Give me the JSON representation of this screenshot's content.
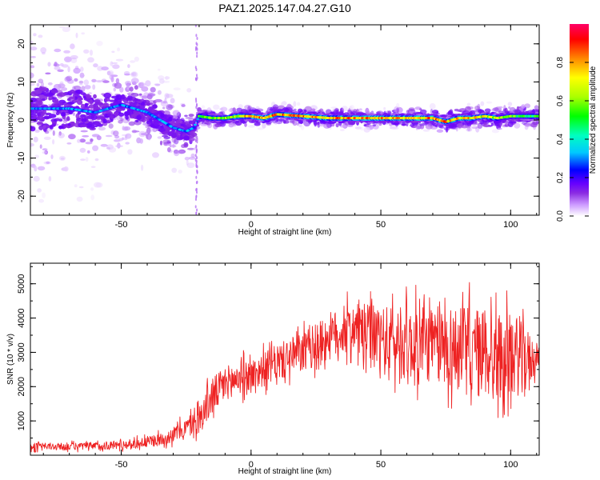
{
  "title": "PAZ1.2025.147.04.27.G10",
  "chart_data": [
    {
      "type": "heatmap",
      "xlabel": "Height of straight line (km)",
      "ylabel": "Frequency (Hz)",
      "xlim": [
        -85,
        111
      ],
      "ylim": [
        -25,
        25
      ],
      "xticks": [
        -50,
        0,
        50,
        100
      ],
      "yticks": [
        -20,
        -10,
        0,
        10,
        20
      ],
      "colorbar": {
        "label": "Normalized spectral amplitude",
        "range": [
          0,
          1
        ],
        "ticks": [
          0.0,
          0.2,
          0.4,
          0.6,
          0.8
        ],
        "tick_labels": [
          "0.0",
          "0.2",
          "0.4",
          "0.6",
          "0.8"
        ],
        "colormap": [
          "#ffffff",
          "#cc99ff",
          "#8a2be2",
          "#6600ff",
          "#0000ff",
          "#00c8ff",
          "#00ffc0",
          "#00ff00",
          "#aaff00",
          "#ffff00",
          "#ff8800",
          "#ff0000",
          "#ff0066"
        ]
      },
      "ridge": {
        "x": [
          -80,
          -70,
          -60,
          -50,
          -45,
          -40,
          -35,
          -30,
          -25,
          -22,
          -20,
          -15,
          -10,
          -5,
          0,
          5,
          10,
          20,
          30,
          40,
          50,
          60,
          70,
          75,
          80,
          85,
          90,
          95,
          100,
          105,
          110
        ],
        "y": [
          3,
          3,
          2,
          4,
          3,
          2,
          0,
          -2,
          -3,
          -2,
          1,
          0.5,
          0.5,
          1,
          1,
          0.5,
          1.5,
          1,
          0.5,
          0.5,
          0.5,
          0.5,
          0.5,
          -0.5,
          0.5,
          0.5,
          1,
          0.5,
          1,
          1,
          1
        ]
      },
      "ridge_amplitude": {
        "x": [
          -85,
          -50,
          -35,
          -22,
          -20,
          -5,
          0,
          20,
          40,
          60,
          80,
          100,
          111
        ],
        "amp": [
          0.2,
          0.22,
          0.3,
          0.35,
          0.55,
          0.7,
          0.85,
          0.85,
          0.85,
          0.85,
          0.85,
          0.6,
          0.55
        ]
      },
      "scatter_spread": {
        "x": [
          -85,
          -70,
          -50,
          -35,
          -22,
          -20,
          0,
          50,
          100,
          111
        ],
        "spread_hz": [
          15,
          14,
          9,
          7,
          6,
          1.5,
          1.5,
          1.5,
          2,
          2
        ]
      }
    },
    {
      "type": "line",
      "xlabel": "Height of straight line (km)",
      "ylabel": "SNR (10 * v/v)",
      "xlim": [
        -85,
        111
      ],
      "ylim": [
        0,
        5600
      ],
      "xticks": [
        -50,
        0,
        50,
        100
      ],
      "yticks": [
        1000,
        2000,
        3000,
        4000,
        5000
      ],
      "series": [
        {
          "color": "#ee2222",
          "x": [
            -85,
            -70,
            -55,
            -45,
            -35,
            -30,
            -25,
            -20,
            -15,
            -10,
            -5,
            0,
            5,
            10,
            15,
            20,
            25,
            30,
            35,
            40,
            45,
            50,
            55,
            60,
            65,
            70,
            75,
            80,
            85,
            90,
            95,
            100,
            105,
            108,
            111
          ],
          "mean": [
            250,
            250,
            280,
            330,
            450,
            600,
            800,
            1050,
            1700,
            2100,
            2250,
            2350,
            2500,
            2700,
            2850,
            3000,
            3200,
            3450,
            3600,
            3700,
            3500,
            3350,
            3300,
            3250,
            3250,
            3200,
            3200,
            3100,
            3000,
            2950,
            2900,
            2900,
            2800,
            2800,
            2900
          ],
          "amplitude": [
            150,
            150,
            170,
            200,
            260,
            320,
            400,
            600,
            800,
            700,
            700,
            650,
            700,
            750,
            800,
            850,
            900,
            1000,
            1000,
            1000,
            1300,
            1400,
            1500,
            1500,
            1500,
            1600,
            1700,
            1800,
            1900,
            1900,
            1800,
            1700,
            1500,
            1000,
            300
          ]
        }
      ]
    }
  ]
}
